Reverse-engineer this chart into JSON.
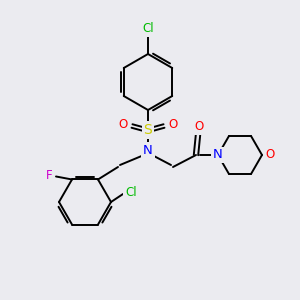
{
  "background_color": "#ebebf0",
  "bond_color": "#000000",
  "atom_colors": {
    "Cl": "#00bb00",
    "F": "#cc00cc",
    "N": "#0000ff",
    "O": "#ff0000",
    "S": "#cccc00"
  },
  "figsize": [
    3.0,
    3.0
  ],
  "dpi": 100
}
